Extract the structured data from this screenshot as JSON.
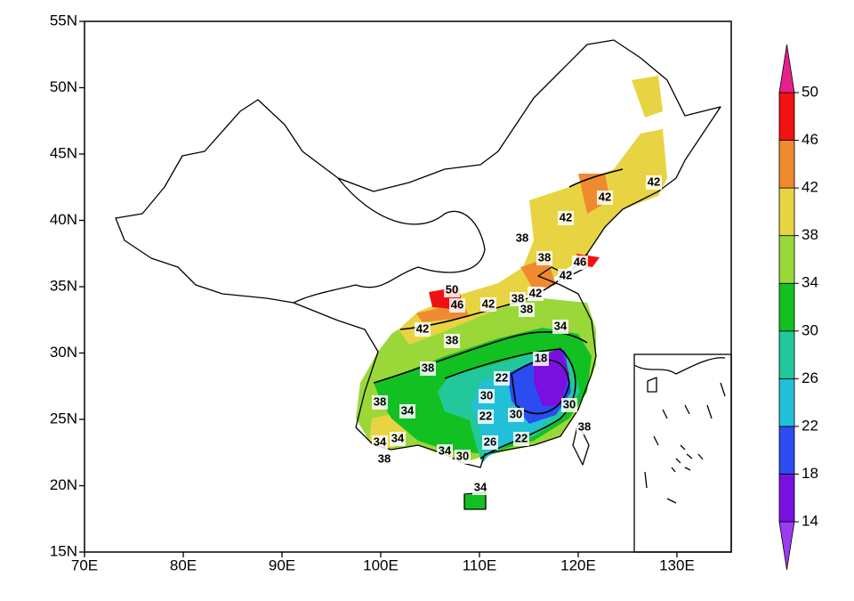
{
  "map": {
    "xticks": [
      {
        "value": 70,
        "label": "70E"
      },
      {
        "value": 80,
        "label": "80E"
      },
      {
        "value": 90,
        "label": "90E"
      },
      {
        "value": 100,
        "label": "100E"
      },
      {
        "value": 110,
        "label": "110E"
      },
      {
        "value": 120,
        "label": "120E"
      },
      {
        "value": 130,
        "label": "130E"
      }
    ],
    "yticks": [
      {
        "value": 15,
        "label": "15N"
      },
      {
        "value": 20,
        "label": "20N"
      },
      {
        "value": 25,
        "label": "25N"
      },
      {
        "value": 30,
        "label": "30N"
      },
      {
        "value": 35,
        "label": "35N"
      },
      {
        "value": 40,
        "label": "40N"
      },
      {
        "value": 45,
        "label": "45N"
      },
      {
        "value": 50,
        "label": "50N"
      },
      {
        "value": 55,
        "label": "55N"
      }
    ],
    "xlim": [
      70,
      135.5
    ],
    "ylim": [
      15,
      55
    ],
    "colorbar_levels": [
      14,
      18,
      22,
      26,
      30,
      34,
      38,
      42,
      46,
      50
    ],
    "colorbar_colors": [
      "#9a3cf0",
      "#7a10e0",
      "#2a4cf0",
      "#22c0d8",
      "#22c89c",
      "#12c022",
      "#9ad83a",
      "#e8d442",
      "#f08a30",
      "#f01212",
      "#e8208a"
    ],
    "contour_labels": [
      38,
      42,
      42,
      42,
      38,
      42,
      46,
      50,
      46,
      42,
      38,
      42,
      38,
      42,
      38,
      34,
      38,
      18,
      22,
      30,
      22,
      30,
      30,
      26,
      22,
      34,
      30,
      38,
      34,
      34,
      34,
      38,
      38,
      34
    ]
  }
}
